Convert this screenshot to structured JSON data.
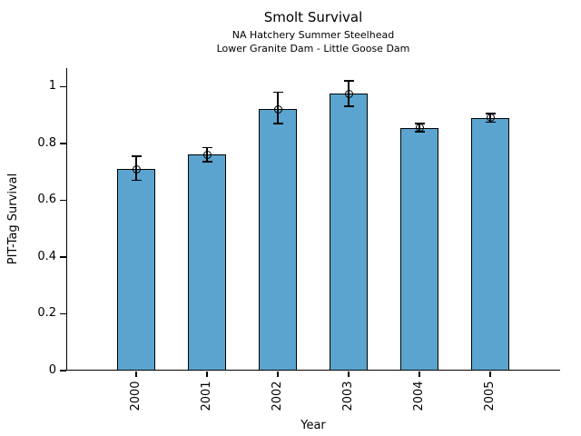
{
  "chart_data": {
    "type": "bar",
    "title": "Smolt Survival",
    "subtitle_line1": "NA Hatchery Summer Steelhead",
    "subtitle_line2": "Lower Granite Dam - Little Goose Dam",
    "xlabel": "Year",
    "ylabel": "PIT-Tag Survival",
    "categories": [
      "2000",
      "2001",
      "2002",
      "2003",
      "2004",
      "2005"
    ],
    "values": [
      0.71,
      0.76,
      0.92,
      0.975,
      0.855,
      0.89
    ],
    "error_low": [
      0.67,
      0.735,
      0.87,
      0.93,
      0.84,
      0.875
    ],
    "error_high": [
      0.755,
      0.785,
      0.98,
      1.02,
      0.87,
      0.905
    ],
    "yticks": [
      0,
      0.2,
      0.4,
      0.6,
      0.8,
      1
    ],
    "ytick_labels": [
      "0",
      "0.2",
      "0.4",
      "0.6",
      "0.8",
      "1"
    ],
    "ylim": [
      0,
      1.065
    ],
    "bar_color": "#5ba4cf",
    "bar_edge_color": "#000000",
    "error_color": "#000000",
    "marker": "open-circle",
    "grid": false,
    "legend": false,
    "xtick_label_rotation_deg": 90
  }
}
